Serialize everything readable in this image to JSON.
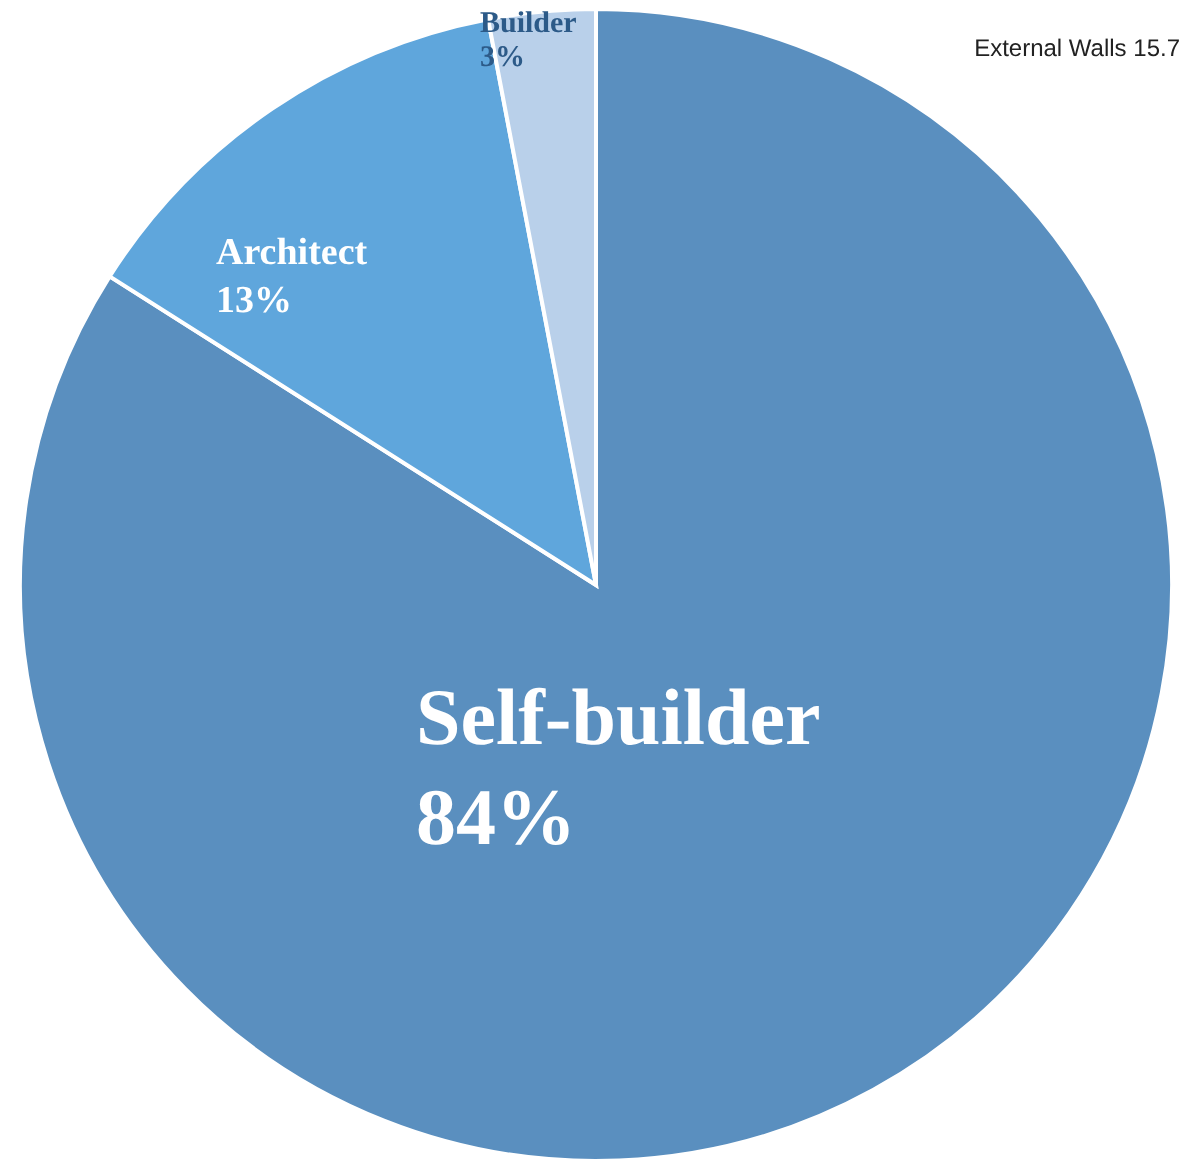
{
  "chart_data": {
    "type": "pie",
    "categories": [
      "Self-builder",
      "Architect",
      "Builder"
    ],
    "values": [
      84,
      13,
      3
    ],
    "value_labels": [
      "84%",
      "13%",
      "3%"
    ],
    "colors": [
      "#5a8fbf",
      "#5fa6dc",
      "#b9d0ea"
    ],
    "annotations": [
      "External Walls 15.7"
    ]
  }
}
